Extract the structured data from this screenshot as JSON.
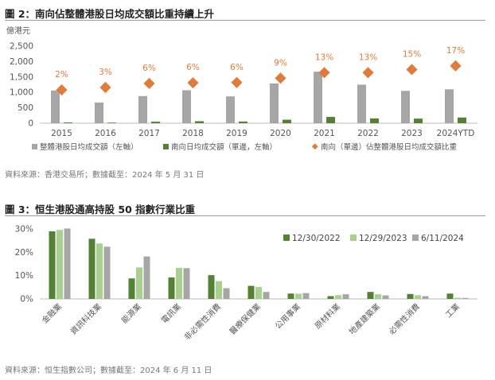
{
  "colors": {
    "turnover": "#a6a6a6",
    "southbound": "#548235",
    "ratio": "#e07b39",
    "green_dark": "#548235",
    "green_light": "#a9d18e",
    "gray": "#a6a6a6"
  },
  "figure2": {
    "title": "圖 2：南向佔整體港股日均成交額比重持續上升",
    "source": "資料來源：香港交易所；數據截至：2024 年 5 月 31 日"
  },
  "figure3": {
    "title": "圖 3：恒生港股通高持股 50 指數行業比重",
    "source": "資料來源：恒生指數公司；數據截至：2024 年 6 月 11 日"
  },
  "chart_data": [
    {
      "type": "bar",
      "title": "南向佔整體港股日均成交額比重持續上升",
      "ylabel": "億港元",
      "ylim": [
        0,
        2500
      ],
      "yticks": [
        "0",
        "500",
        "1,000",
        "1,500",
        "2,000",
        "2,500"
      ],
      "ytick_values": [
        0,
        500,
        1000,
        1500,
        2000,
        2500
      ],
      "categories": [
        "2015",
        "2016",
        "2017",
        "2018",
        "2019",
        "2020",
        "2021",
        "2022",
        "2023",
        "2024YTD"
      ],
      "series": [
        {
          "name": "整體港股日均成交額（左軸）",
          "kind": "bar",
          "values": [
            1060,
            670,
            880,
            1070,
            870,
            1290,
            1670,
            1250,
            1050,
            1100
          ]
        },
        {
          "name": "南向日均成交額（單邊，左軸）",
          "kind": "bar",
          "values": [
            25,
            20,
            50,
            65,
            55,
            115,
            205,
            155,
            150,
            185
          ]
        },
        {
          "name": "南向（單邊）佔整體港股日均成交額比重",
          "kind": "marker",
          "values": [
            1080,
            1160,
            1290,
            1310,
            1320,
            1460,
            1640,
            1640,
            1740,
            1860
          ],
          "labels": [
            "2%",
            "3%",
            "6%",
            "6%",
            "6%",
            "9%",
            "13%",
            "13%",
            "15%",
            "17%"
          ]
        }
      ],
      "legend_position": "bottom"
    },
    {
      "type": "bar",
      "title": "恒生港股通高持股 50 指數行業比重",
      "ylim": [
        0,
        30
      ],
      "yticks": [
        "0%",
        "10%",
        "20%",
        "30%"
      ],
      "ytick_values": [
        0,
        10,
        20,
        30
      ],
      "categories": [
        "金融業",
        "資訊科技業",
        "能源業",
        "電訊業",
        "非必需性消費",
        "醫療保健業",
        "公用事業",
        "原材料業",
        "地產建築業",
        "必需性消費",
        "工業"
      ],
      "series": [
        {
          "name": "12/30/2022",
          "values": [
            29.0,
            25.8,
            8.8,
            9.2,
            10.2,
            5.6,
            2.3,
            1.2,
            3.0,
            2.1,
            2.3
          ]
        },
        {
          "name": "12/29/2023",
          "values": [
            29.6,
            23.8,
            13.5,
            13.3,
            7.6,
            5.1,
            2.2,
            1.6,
            2.0,
            1.6,
            0.5
          ]
        },
        {
          "name": "6/11/2024",
          "values": [
            30.2,
            22.4,
            18.2,
            13.2,
            4.6,
            3.0,
            2.5,
            2.0,
            1.5,
            1.2,
            0.4
          ]
        }
      ],
      "legend_position": "top-right"
    }
  ]
}
